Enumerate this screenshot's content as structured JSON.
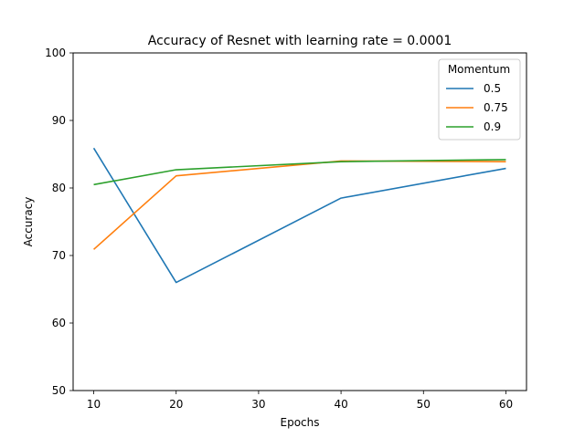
{
  "chart_data": {
    "type": "line",
    "title": "Accuracy of Resnet with learning rate = 0.0001",
    "xlabel": "Epochs",
    "ylabel": "Accuracy",
    "x": [
      10,
      20,
      40,
      60
    ],
    "xlim": [
      7.5,
      62.5
    ],
    "ylim": [
      50,
      100
    ],
    "xticks": [
      10,
      20,
      30,
      40,
      50,
      60
    ],
    "yticks": [
      50,
      60,
      70,
      80,
      90,
      100
    ],
    "grid": false,
    "legend": {
      "title": "Momentum",
      "placement": "top-right"
    },
    "series": [
      {
        "name": "0.5",
        "color": "#1f77b4",
        "values": [
          85.9,
          66.0,
          78.5,
          82.9
        ]
      },
      {
        "name": "0.75",
        "color": "#ff7f0e",
        "values": [
          70.9,
          81.8,
          84.0,
          83.9
        ]
      },
      {
        "name": "0.9",
        "color": "#2ca02c",
        "values": [
          80.5,
          82.7,
          83.9,
          84.2
        ]
      }
    ]
  }
}
